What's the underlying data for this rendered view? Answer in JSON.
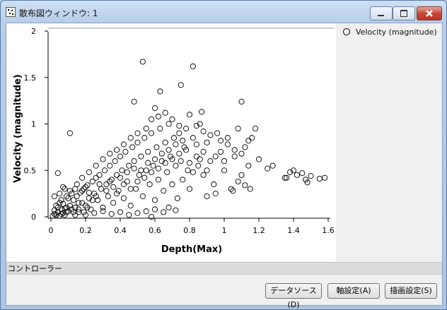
{
  "window": {
    "title": "散布図ウィンドウ: 1"
  },
  "legend": {
    "label": "Velocity (magnitude)"
  },
  "panel": {
    "label": "コントローラー"
  },
  "buttons": {
    "data_source": "データソース(D)",
    "axis_settings": "軸設定(A)",
    "draw_settings": "描画設定(S)"
  },
  "chart_data": {
    "type": "scatter",
    "xlabel": "Depth(Max)",
    "ylabel": "Velocity (magnitude)",
    "xlim": [
      0,
      1.6
    ],
    "ylim": [
      0,
      2
    ],
    "x_ticks": [
      0,
      0.2,
      0.4,
      0.6,
      0.8,
      1,
      1.2,
      1.4,
      1.6
    ],
    "y_ticks": [
      0,
      0.5,
      1,
      1.5,
      2
    ],
    "grid": false,
    "legend_position": "right",
    "series": [
      {
        "name": "Velocity (magnitude)",
        "marker": "open-circle",
        "points": [
          [
            0.01,
            0.01
          ],
          [
            0.02,
            0.03
          ],
          [
            0.03,
            0.02
          ],
          [
            0.04,
            0.05
          ],
          [
            0.05,
            0.01
          ],
          [
            0.06,
            0.08
          ],
          [
            0.07,
            0.04
          ],
          [
            0.08,
            0.02
          ],
          [
            0.09,
            0.1
          ],
          [
            0.1,
            0.06
          ],
          [
            0.02,
            0.07
          ],
          [
            0.03,
            0.12
          ],
          [
            0.04,
            0.1
          ],
          [
            0.05,
            0.15
          ],
          [
            0.06,
            0.03
          ],
          [
            0.07,
            0.14
          ],
          [
            0.08,
            0.09
          ],
          [
            0.09,
            0.05
          ],
          [
            0.11,
            0.12
          ],
          [
            0.12,
            0.08
          ],
          [
            0.13,
            0.18
          ],
          [
            0.14,
            0.1
          ],
          [
            0.15,
            0.22
          ],
          [
            0.16,
            0.05
          ],
          [
            0.17,
            0.26
          ],
          [
            0.18,
            0.15
          ],
          [
            0.19,
            0.3
          ],
          [
            0.2,
            0.12
          ],
          [
            0.21,
            0.34
          ],
          [
            0.22,
            0.2
          ],
          [
            0.23,
            0.08
          ],
          [
            0.24,
            0.38
          ],
          [
            0.25,
            0.25
          ],
          [
            0.26,
            0.42
          ],
          [
            0.27,
            0.18
          ],
          [
            0.28,
            0.45
          ],
          [
            0.29,
            0.3
          ],
          [
            0.3,
            0.1
          ],
          [
            0.31,
            0.5
          ],
          [
            0.32,
            0.35
          ],
          [
            0.33,
            0.22
          ],
          [
            0.34,
            0.55
          ],
          [
            0.35,
            0.4
          ],
          [
            0.36,
            0.15
          ],
          [
            0.37,
            0.6
          ],
          [
            0.38,
            0.45
          ],
          [
            0.39,
            0.28
          ],
          [
            0.4,
            0.65
          ],
          [
            0.41,
            0.5
          ],
          [
            0.42,
            0.2
          ],
          [
            0.43,
            0.7
          ],
          [
            0.44,
            0.38
          ],
          [
            0.45,
            0.55
          ],
          [
            0.46,
            0.12
          ],
          [
            0.47,
            0.75
          ],
          [
            0.48,
            0.6
          ],
          [
            0.49,
            0.3
          ],
          [
            0.5,
            0.8
          ],
          [
            0.51,
            0.45
          ],
          [
            0.52,
            0.65
          ],
          [
            0.53,
            0.22
          ],
          [
            0.54,
            0.85
          ],
          [
            0.55,
            0.5
          ],
          [
            0.56,
            0.7
          ],
          [
            0.57,
            0.35
          ],
          [
            0.58,
            0.9
          ],
          [
            0.59,
            0.55
          ],
          [
            0.6,
            0.18
          ],
          [
            0.61,
            0.75
          ],
          [
            0.62,
            0.4
          ],
          [
            0.63,
            0.95
          ],
          [
            0.64,
            0.6
          ],
          [
            0.65,
            0.28
          ],
          [
            0.66,
            0.8
          ],
          [
            0.67,
            0.48
          ],
          [
            0.68,
            1.0
          ],
          [
            0.69,
            0.65
          ],
          [
            0.7,
            0.35
          ],
          [
            0.71,
            0.85
          ],
          [
            0.72,
            0.55
          ],
          [
            0.73,
            0.2
          ],
          [
            0.74,
            0.9
          ],
          [
            0.75,
            0.6
          ],
          [
            0.76,
            0.4
          ],
          [
            0.77,
            0.75
          ],
          [
            0.78,
            0.95
          ],
          [
            0.79,
            0.5
          ],
          [
            0.8,
            0.3
          ],
          [
            0.82,
            0.85
          ],
          [
            0.84,
            0.65
          ],
          [
            0.86,
            1.0
          ],
          [
            0.88,
            0.45
          ],
          [
            0.9,
            0.8
          ],
          [
            0.92,
            0.6
          ],
          [
            0.94,
            0.35
          ],
          [
            0.96,
            0.9
          ],
          [
            0.98,
            0.7
          ],
          [
            1.0,
            0.5
          ],
          [
            1.02,
            0.85
          ],
          [
            1.04,
            0.3
          ],
          [
            1.06,
            0.65
          ],
          [
            1.08,
            0.95
          ],
          [
            1.1,
            0.45
          ],
          [
            1.12,
            0.75
          ],
          [
            1.14,
            0.55
          ],
          [
            1.16,
            0.85
          ],
          [
            1.18,
            0.95
          ],
          [
            0.53,
            1.67
          ],
          [
            0.82,
            1.62
          ],
          [
            0.75,
            1.42
          ],
          [
            0.63,
            1.35
          ],
          [
            0.48,
            1.24
          ],
          [
            1.1,
            1.24
          ],
          [
            0.87,
            1.13
          ],
          [
            0.6,
            1.17
          ],
          [
            0.11,
            0.9
          ],
          [
            0.02,
            0.22
          ],
          [
            0.04,
            0.47
          ],
          [
            0.07,
            0.32
          ],
          [
            1.25,
            0.52
          ],
          [
            1.28,
            0.55
          ],
          [
            1.35,
            0.42
          ],
          [
            1.38,
            0.48
          ],
          [
            1.4,
            0.5
          ],
          [
            1.42,
            0.45
          ],
          [
            1.45,
            0.47
          ],
          [
            1.47,
            0.4
          ],
          [
            1.5,
            0.44
          ],
          [
            1.55,
            0.41
          ],
          [
            1.58,
            0.42
          ],
          [
            1.48,
            0.37
          ],
          [
            1.36,
            0.42
          ],
          [
            1.08,
            0.38
          ],
          [
            1.05,
            0.28
          ],
          [
            1.12,
            0.34
          ],
          [
            0.95,
            0.25
          ],
          [
            0.9,
            0.22
          ],
          [
            0.2,
            0.02
          ],
          [
            0.25,
            0.04
          ],
          [
            0.3,
            0.06
          ],
          [
            0.35,
            0.03
          ],
          [
            0.4,
            0.05
          ],
          [
            0.45,
            0.02
          ],
          [
            0.5,
            0.04
          ],
          [
            0.55,
            0.06
          ],
          [
            0.58,
            0.0
          ],
          [
            0.6,
            0.08
          ],
          [
            0.65,
            0.05
          ],
          [
            0.68,
            0.1
          ],
          [
            0.72,
            0.07
          ],
          [
            0.15,
            0.35
          ],
          [
            0.18,
            0.42
          ],
          [
            0.22,
            0.48
          ],
          [
            0.26,
            0.55
          ],
          [
            0.3,
            0.62
          ],
          [
            0.34,
            0.68
          ],
          [
            0.38,
            0.72
          ],
          [
            0.42,
            0.78
          ],
          [
            0.46,
            0.85
          ],
          [
            0.5,
            0.9
          ],
          [
            0.55,
            0.95
          ],
          [
            0.58,
            1.05
          ],
          [
            0.62,
            1.08
          ],
          [
            0.66,
            1.12
          ],
          [
            0.7,
            1.05
          ],
          [
            0.74,
            0.98
          ],
          [
            0.8,
            1.1
          ],
          [
            0.84,
            0.98
          ],
          [
            0.88,
            0.92
          ],
          [
            0.92,
            0.88
          ],
          [
            0.98,
            0.82
          ],
          [
            1.02,
            0.78
          ],
          [
            1.06,
            0.72
          ],
          [
            1.1,
            0.68
          ],
          [
            1.14,
            0.82
          ],
          [
            1.2,
            0.62
          ],
          [
            1.15,
            0.3
          ],
          [
            1.0,
            0.6
          ],
          [
            0.95,
            0.65
          ],
          [
            0.85,
            0.55
          ],
          [
            0.1,
            0.2
          ],
          [
            0.12,
            0.25
          ],
          [
            0.14,
            0.3
          ],
          [
            0.16,
            0.15
          ],
          [
            0.18,
            0.28
          ],
          [
            0.2,
            0.32
          ],
          [
            0.22,
            0.26
          ],
          [
            0.24,
            0.18
          ],
          [
            0.26,
            0.22
          ],
          [
            0.28,
            0.35
          ],
          [
            0.32,
            0.28
          ],
          [
            0.34,
            0.38
          ],
          [
            0.36,
            0.32
          ],
          [
            0.38,
            0.25
          ],
          [
            0.4,
            0.42
          ],
          [
            0.42,
            0.35
          ],
          [
            0.44,
            0.48
          ],
          [
            0.46,
            0.3
          ],
          [
            0.48,
            0.52
          ],
          [
            0.5,
            0.38
          ],
          [
            0.52,
            0.5
          ],
          [
            0.54,
            0.42
          ],
          [
            0.56,
            0.58
          ],
          [
            0.58,
            0.48
          ],
          [
            0.6,
            0.62
          ],
          [
            0.62,
            0.52
          ],
          [
            0.64,
            0.68
          ],
          [
            0.66,
            0.58
          ],
          [
            0.68,
            0.72
          ],
          [
            0.7,
            0.62
          ],
          [
            0.72,
            0.78
          ],
          [
            0.74,
            0.68
          ],
          [
            0.76,
            0.82
          ],
          [
            0.78,
            0.72
          ],
          [
            0.8,
            0.58
          ],
          [
            0.82,
            0.48
          ],
          [
            0.84,
            0.78
          ],
          [
            0.86,
            0.62
          ],
          [
            0.88,
            0.7
          ],
          [
            0.9,
            0.5
          ],
          [
            0.05,
            0.25
          ],
          [
            0.06,
            0.18
          ],
          [
            0.08,
            0.3
          ],
          [
            0.09,
            0.22
          ],
          [
            0.11,
            0.28
          ],
          [
            0.13,
            0.05
          ],
          [
            0.14,
            0.02
          ],
          [
            0.16,
            0.08
          ],
          [
            0.19,
            0.05
          ],
          [
            0.21,
            0.1
          ]
        ]
      }
    ]
  }
}
